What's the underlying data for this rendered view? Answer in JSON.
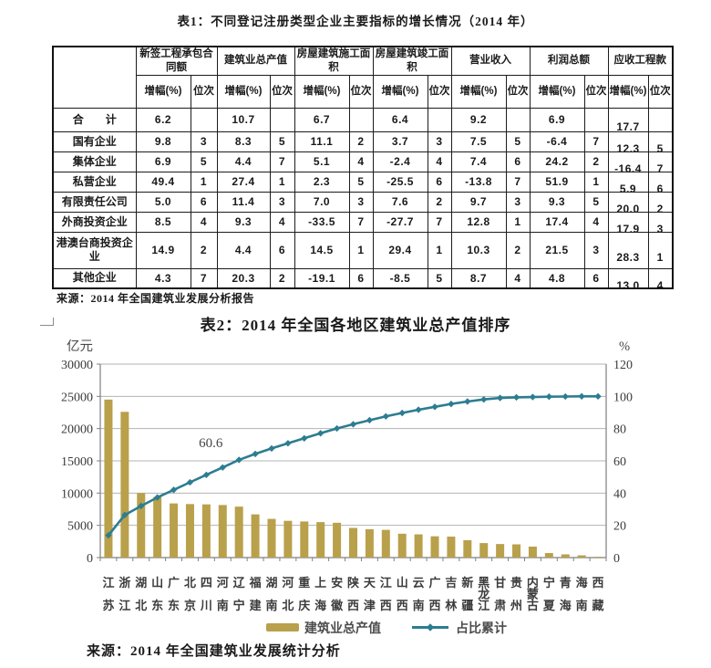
{
  "table1": {
    "title": "表1：不同登记注册类型企业主要指标的增长情况（2014 年）",
    "corner_label": "",
    "group_headers": [
      "新签工程承包合同额",
      "建筑业总产值",
      "房屋建筑施工面积",
      "房屋建筑竣工面积",
      "营业收入",
      "利润总额",
      "应收工程款"
    ],
    "sub_headers": [
      "增幅(%)",
      "位次"
    ],
    "rows": [
      {
        "label": "合　　计",
        "cells": [
          "6.2",
          "",
          "10.7",
          "",
          "6.7",
          "",
          "6.4",
          "",
          "9.2",
          "",
          "6.9",
          "",
          "17.7",
          ""
        ]
      },
      {
        "label": "国有企业",
        "cells": [
          "9.8",
          "3",
          "8.3",
          "5",
          "11.1",
          "2",
          "3.7",
          "3",
          "7.5",
          "5",
          "-6.4",
          "7",
          "12.3",
          "5"
        ]
      },
      {
        "label": "集体企业",
        "cells": [
          "6.9",
          "5",
          "4.4",
          "7",
          "5.1",
          "4",
          "-2.4",
          "4",
          "7.4",
          "6",
          "24.2",
          "2",
          "-16.4",
          "7"
        ]
      },
      {
        "label": "私营企业",
        "cells": [
          "49.4",
          "1",
          "27.4",
          "1",
          "2.3",
          "5",
          "-25.5",
          "6",
          "-13.8",
          "7",
          "51.9",
          "1",
          "5.9",
          "6"
        ]
      },
      {
        "label": "有限责任公司",
        "cells": [
          "5.0",
          "6",
          "11.4",
          "3",
          "7.0",
          "3",
          "7.6",
          "2",
          "9.7",
          "3",
          "9.3",
          "5",
          "20.0",
          "2"
        ]
      },
      {
        "label": "外商投资企业",
        "cells": [
          "8.5",
          "4",
          "9.3",
          "4",
          "-33.5",
          "7",
          "-27.7",
          "7",
          "12.8",
          "1",
          "17.4",
          "4",
          "17.9",
          "3"
        ]
      },
      {
        "label": "港澳台商投资企业",
        "cells": [
          "14.9",
          "2",
          "4.4",
          "6",
          "14.5",
          "1",
          "29.4",
          "1",
          "10.3",
          "2",
          "21.5",
          "3",
          "28.3",
          "1"
        ]
      },
      {
        "label": "其他企业",
        "cells": [
          "4.3",
          "7",
          "20.3",
          "2",
          "-19.1",
          "6",
          "-8.5",
          "5",
          "8.7",
          "4",
          "4.8",
          "6",
          "13.0",
          "4"
        ]
      }
    ],
    "source": "来源：2014 年全国建筑业发展分析报告"
  },
  "table2": {
    "title": "表2：2014 年全国各地区建筑业总产值排序",
    "source": "来源：2014 年全国建筑业发展统计分析"
  },
  "chart_data": {
    "type": "bar",
    "subtype": "pareto (bar + cumulative line)",
    "title": "2014 年全国各地区建筑业总产值排序",
    "categories": [
      "江苏",
      "浙江",
      "湖北",
      "山东",
      "广东",
      "北京",
      "四川",
      "河南",
      "辽宁",
      "福建",
      "湖南",
      "河北",
      "重庆",
      "上海",
      "安徽",
      "陕西",
      "天津",
      "江西",
      "山西",
      "云南",
      "广西",
      "吉林",
      "新疆",
      "黑龙江",
      "甘肃",
      "贵州",
      "内蒙古",
      "宁夏",
      "青海",
      "海南",
      "西藏"
    ],
    "series": [
      {
        "name": "建筑业总产值",
        "type": "bar",
        "axis": "left",
        "unit": "亿元",
        "values": [
          24500,
          22600,
          10000,
          9400,
          8400,
          8300,
          8250,
          8150,
          7900,
          6700,
          6000,
          5700,
          5600,
          5500,
          5400,
          4600,
          4400,
          4300,
          3700,
          3600,
          3300,
          3250,
          2700,
          2250,
          2100,
          2050,
          1700,
          700,
          500,
          350,
          120
        ]
      },
      {
        "name": "占比累计",
        "type": "line",
        "axis": "right",
        "unit": "%",
        "values": [
          13.8,
          26.4,
          32.0,
          37.3,
          42.0,
          46.7,
          51.3,
          55.9,
          60.6,
          64.3,
          67.7,
          70.9,
          74.0,
          77.1,
          80.1,
          82.7,
          85.2,
          87.6,
          89.7,
          91.7,
          93.5,
          95.3,
          96.8,
          98.1,
          99.0,
          99.4,
          99.6,
          99.8,
          99.9,
          100.0,
          100.0
        ]
      }
    ],
    "annotation": {
      "text": "60.6",
      "series": "占比累计",
      "point_index": 8
    },
    "left_axis": {
      "label": "亿元",
      "min": 0,
      "max": 30000,
      "ticks": [
        0,
        5000,
        10000,
        15000,
        20000,
        25000,
        30000
      ]
    },
    "right_axis": {
      "label": "%",
      "min": 0,
      "max": 120,
      "ticks": [
        0,
        20,
        40,
        60,
        80,
        100,
        120
      ]
    },
    "grid": true,
    "legend_position": "bottom",
    "legend": [
      {
        "label": "建筑业总产值",
        "swatch": "bar"
      },
      {
        "label": "占比累计",
        "swatch": "line"
      }
    ]
  },
  "colors": {
    "bar": "#b9a04b",
    "line": "#2d7d91",
    "grid": "#b3b3b3",
    "axis": "#7f7f7f",
    "table_border": "#1c1c1c"
  }
}
